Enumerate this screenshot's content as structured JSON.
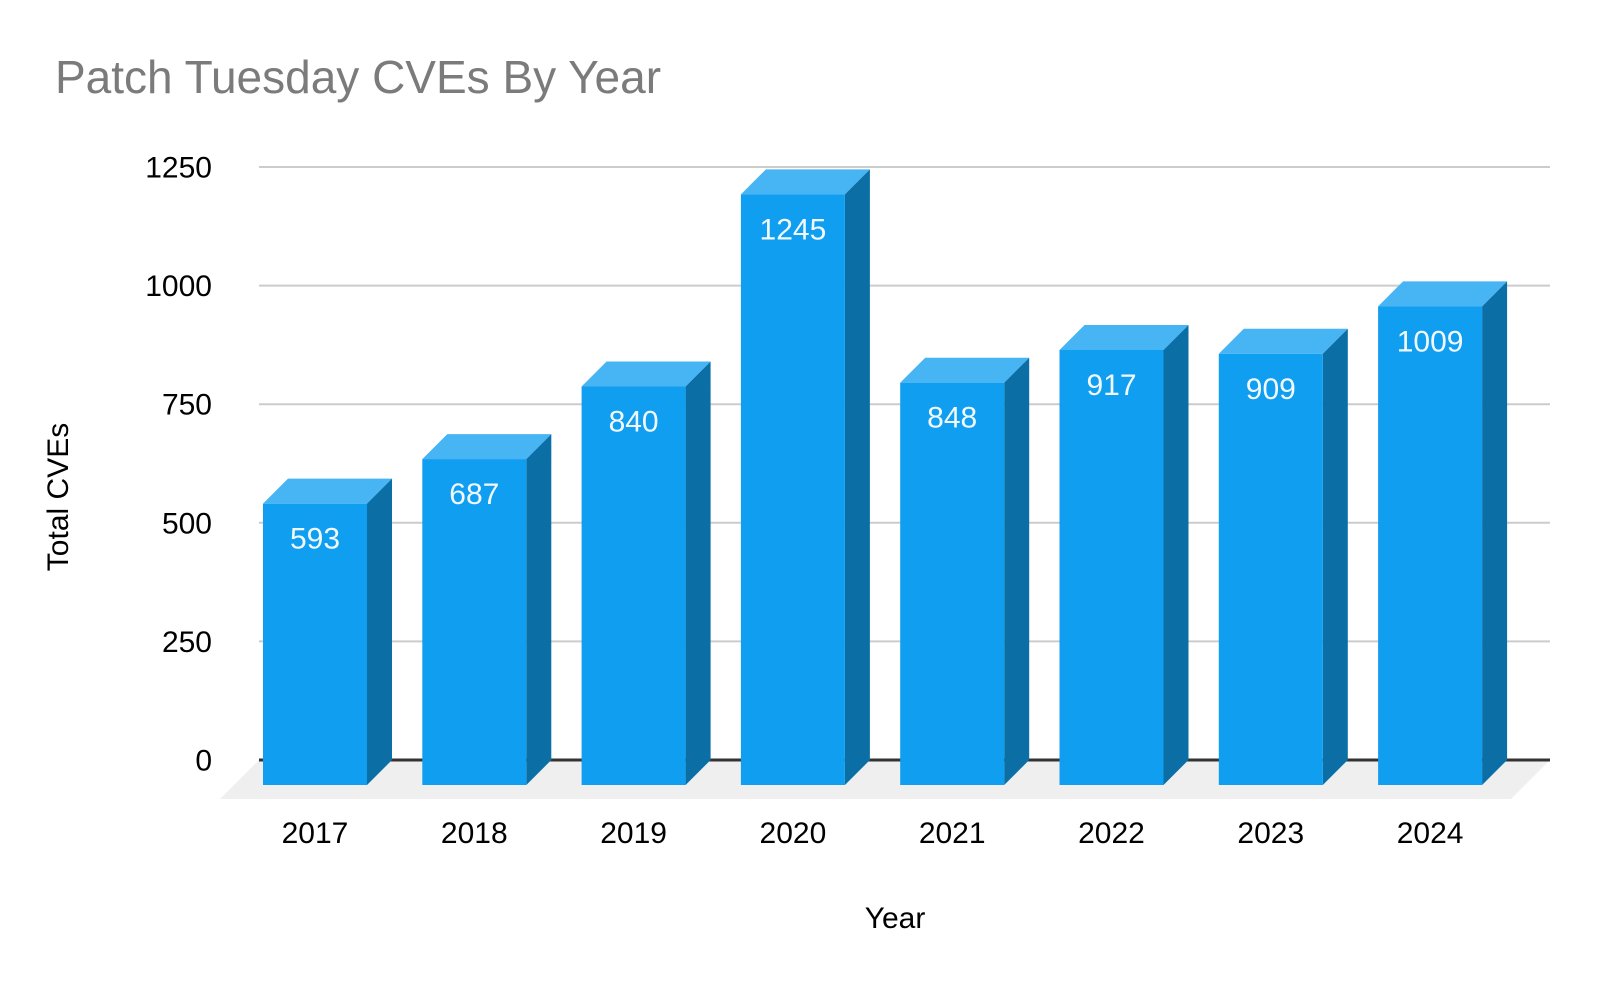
{
  "chart_data": {
    "type": "bar",
    "style": "3d-column",
    "title": "Patch Tuesday CVEs By Year",
    "xlabel": "Year",
    "ylabel": "Total CVEs",
    "categories": [
      "2017",
      "2018",
      "2019",
      "2020",
      "2021",
      "2022",
      "2023",
      "2024"
    ],
    "values": [
      593,
      687,
      840,
      1245,
      848,
      917,
      909,
      1009
    ],
    "value_labels": [
      "593",
      "687",
      "840",
      "1245",
      "848",
      "917",
      "909",
      "1009"
    ],
    "yticks": [
      0,
      250,
      500,
      750,
      1000,
      1250
    ],
    "ytick_labels": [
      "0",
      "250",
      "500",
      "750",
      "1000",
      "1250"
    ],
    "ylim": [
      0,
      1250
    ],
    "grid": true,
    "legend": "none",
    "colors": {
      "background": "#FFFFFF",
      "bar_front": "#109EF0",
      "bar_top": "#47B5F3",
      "bar_side": "#0B6FA6",
      "floor": "#EFEFEF",
      "gridline": "#CCCCCC",
      "axis_line": "#333333",
      "title_text": "#7B7B7B",
      "axis_text": "#000000",
      "value_label_text": "#F2F9FE"
    }
  }
}
